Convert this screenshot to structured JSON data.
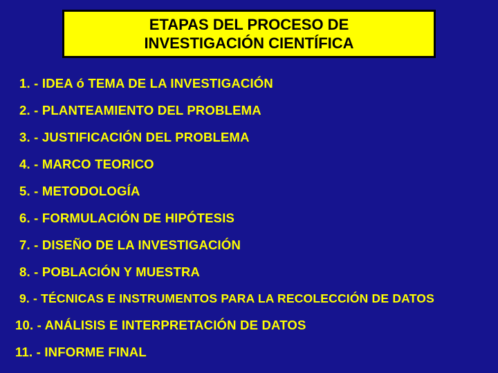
{
  "colors": {
    "background": "#16148f",
    "title_bg": "#ffff00",
    "title_border": "#000000",
    "title_text": "#000000",
    "item_text": "#ffff00"
  },
  "title": {
    "line1": "ETAPAS DEL PROCESO DE",
    "line2": "INVESTIGACIÓN CIENTÍFICA",
    "fontsize": 22,
    "fontweight": "bold"
  },
  "items": [
    "1. - IDEA ó TEMA DE LA INVESTIGACIÓN",
    "2. - PLANTEAMIENTO DEL PROBLEMA",
    "3. - JUSTIFICACIÓN DEL PROBLEMA",
    "4. - MARCO TEORICO",
    "5. - METODOLOGÍA",
    "6. - FORMULACIÓN DE HIPÓTESIS",
    "7. - DISEÑO DE LA INVESTIGACIÓN",
    "8. - POBLACIÓN Y MUESTRA",
    "9. - TÉCNICAS E INSTRUMENTOS PARA LA RECOLECCIÓN DE DATOS",
    "10. - ANÁLISIS E INTERPRETACIÓN DE DATOS",
    "11. - INFORME FINAL"
  ],
  "item_fontsize": 18.5,
  "item_fontweight": "bold"
}
